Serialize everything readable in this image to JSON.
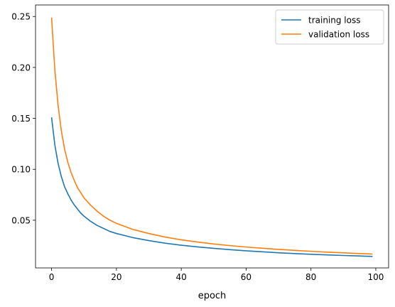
{
  "chart_data": {
    "type": "line",
    "title": "",
    "xlabel": "epoch",
    "ylabel": "",
    "xlim": [
      -4.95,
      103.95
    ],
    "ylim": [
      0.0032,
      0.2613
    ],
    "xticks": [
      0,
      20,
      40,
      60,
      80,
      100
    ],
    "xtick_labels": [
      "0",
      "20",
      "40",
      "60",
      "80",
      "100"
    ],
    "yticks": [
      0.05,
      0.1,
      0.15,
      0.2,
      0.25
    ],
    "ytick_labels": [
      "0.05",
      "0.10",
      "0.15",
      "0.20",
      "0.25"
    ],
    "grid": false,
    "legend_position": "top-right",
    "x": [
      0,
      1,
      2,
      3,
      4,
      5,
      6,
      7,
      8,
      9,
      10,
      12,
      14,
      16,
      18,
      20,
      25,
      30,
      35,
      40,
      45,
      50,
      55,
      60,
      65,
      70,
      75,
      80,
      85,
      90,
      95,
      99
    ],
    "series": [
      {
        "name": "training loss",
        "color": "#1f77b4",
        "values": [
          0.151,
          0.124,
          0.106,
          0.093,
          0.083,
          0.076,
          0.07,
          0.065,
          0.061,
          0.057,
          0.054,
          0.049,
          0.045,
          0.042,
          0.039,
          0.037,
          0.033,
          0.03,
          0.0275,
          0.0255,
          0.0238,
          0.0224,
          0.0211,
          0.02,
          0.019,
          0.0181,
          0.0173,
          0.0166,
          0.016,
          0.0154,
          0.0149,
          0.0145
        ]
      },
      {
        "name": "validation loss",
        "color": "#ff7f0e",
        "values": [
          0.249,
          0.198,
          0.163,
          0.138,
          0.12,
          0.107,
          0.097,
          0.089,
          0.082,
          0.077,
          0.072,
          0.065,
          0.059,
          0.054,
          0.05,
          0.047,
          0.041,
          0.037,
          0.0335,
          0.0308,
          0.0286,
          0.0267,
          0.0251,
          0.0237,
          0.0225,
          0.0214,
          0.0204,
          0.0195,
          0.0187,
          0.018,
          0.0173,
          0.0168
        ]
      }
    ]
  }
}
